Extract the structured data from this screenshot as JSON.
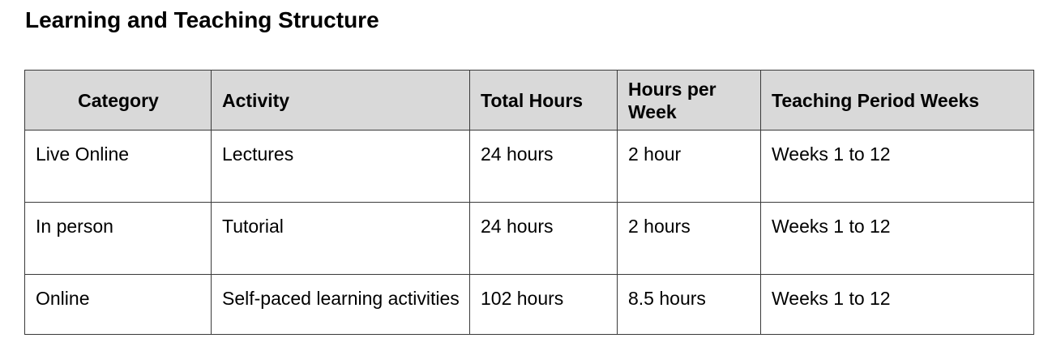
{
  "title": "Learning and Teaching Structure",
  "table": {
    "headers": [
      "Category",
      "Activity",
      "Total Hours",
      "Hours per Week",
      "Teaching Period Weeks"
    ],
    "rows": [
      [
        "Live Online",
        "Lectures",
        "24 hours",
        "2 hour",
        "Weeks 1 to 12"
      ],
      [
        "In person",
        "Tutorial",
        "24 hours",
        "2 hours",
        "Weeks 1 to 12"
      ],
      [
        "Online",
        "Self-paced learning activities",
        "102 hours",
        "8.5 hours",
        "Weeks 1 to 12"
      ]
    ]
  }
}
